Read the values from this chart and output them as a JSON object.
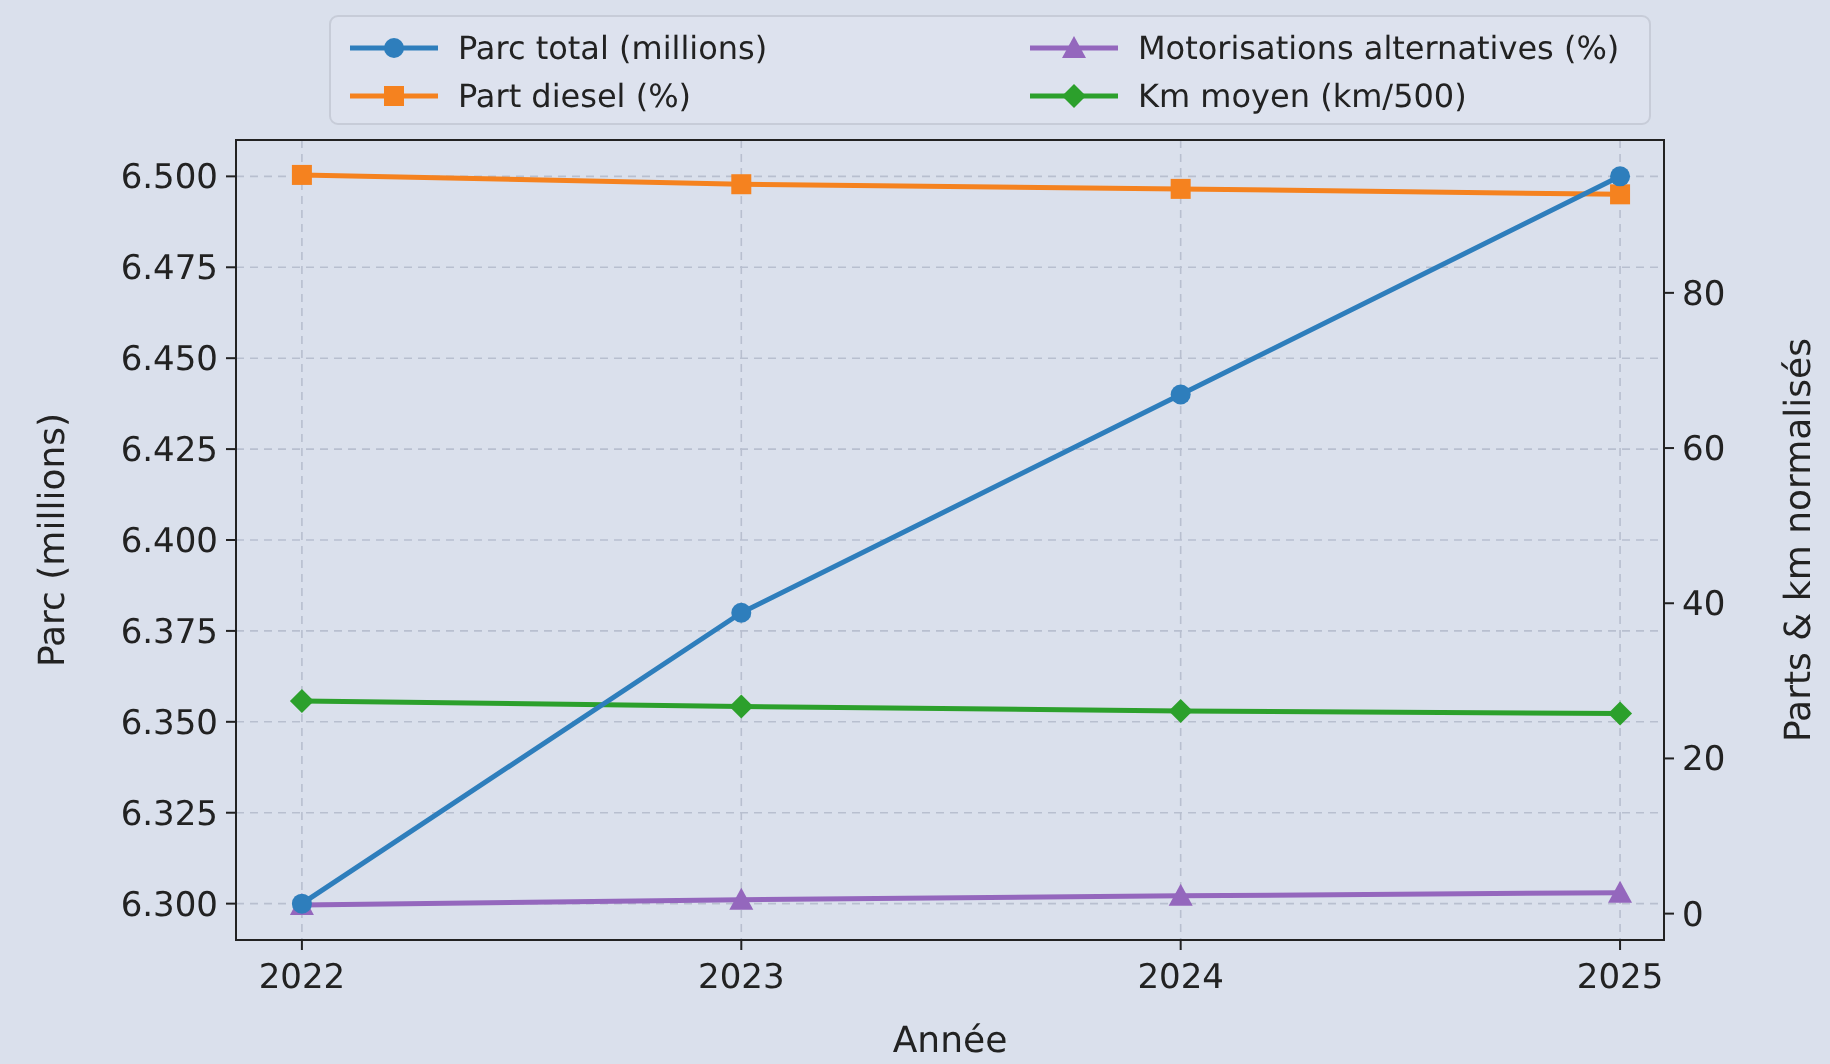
{
  "chart_data": {
    "type": "line",
    "x": [
      2022,
      2023,
      2024,
      2025
    ],
    "xlabel": "Année",
    "ylabel": "Parc (millions)",
    "y2label": "Parts & km normalisés",
    "xlim": [
      2021.85,
      2025.1
    ],
    "xticks": [
      2022,
      2023,
      2024,
      2025
    ],
    "ylim": [
      6.29,
      6.51
    ],
    "yticks": [
      {
        "value": 6.3,
        "label": "6.300"
      },
      {
        "value": 6.325,
        "label": "6.325"
      },
      {
        "value": 6.35,
        "label": "6.350"
      },
      {
        "value": 6.375,
        "label": "6.375"
      },
      {
        "value": 6.4,
        "label": "6.400"
      },
      {
        "value": 6.425,
        "label": "6.425"
      },
      {
        "value": 6.45,
        "label": "6.450"
      },
      {
        "value": 6.475,
        "label": "6.475"
      },
      {
        "value": 6.5,
        "label": "6.500"
      }
    ],
    "y2lim": [
      -3.4,
      99.7
    ],
    "y2ticks": [
      0,
      20,
      40,
      60,
      80
    ],
    "grid": true,
    "legend": "top",
    "line_style": "solid",
    "series": [
      {
        "name": "Parc total (millions)",
        "color": "#2e7ebc",
        "marker": "circle",
        "values": [
          6.3,
          6.38,
          6.44,
          6.5
        ]
      },
      {
        "name": "Part diesel (%)",
        "color": "#f5821f",
        "marker": "square",
        "axis": "y2",
        "values": [
          95.2,
          94.0,
          93.4,
          92.7
        ]
      },
      {
        "name": "Motorisations alternatives (%)",
        "color": "#9467bd",
        "marker": "triangle",
        "axis": "y2",
        "values": [
          1.1,
          1.8,
          2.3,
          2.7
        ]
      },
      {
        "name": "Km moyen (km/500)",
        "color": "#2ca02c",
        "marker": "diamond",
        "axis": "y2",
        "values": [
          27.4,
          26.7,
          26.1,
          25.8
        ]
      }
    ]
  }
}
